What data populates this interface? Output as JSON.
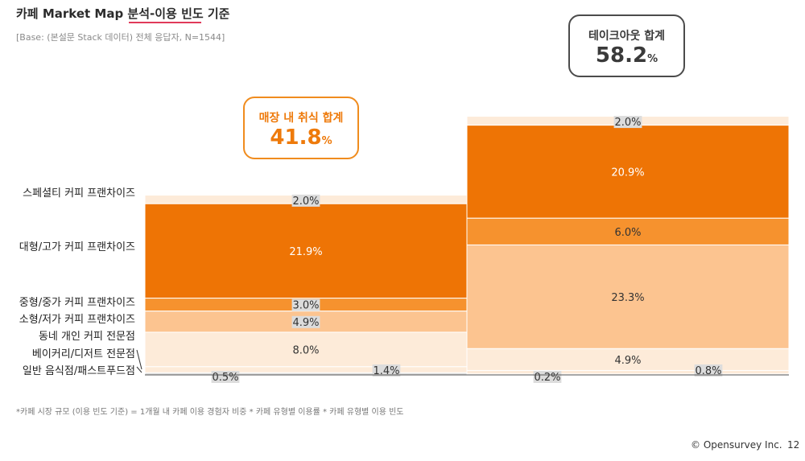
{
  "header": {
    "title": "카페 Market Map 분석-이용 빈도 기준",
    "base": "[Base: (본설문 Stack 데이터) 전체 응답자, N=1544]"
  },
  "callouts": {
    "dine_in": {
      "label": "매장 내 취식 합계",
      "value": "41.8",
      "unit": "%"
    },
    "takeout": {
      "label": "테이크아웃 합계",
      "value": "58.2",
      "unit": "%"
    }
  },
  "colors": {
    "seg0": "#fdebd9",
    "seg1": "#ee7405",
    "seg2": "#f6922e",
    "seg3": "#fcc490",
    "seg4": "#fdebd9",
    "seg5": "#fdebd9",
    "seg6": "#dcdcdc",
    "label_bg": "#dcdcdc",
    "accent": "#e03a5a"
  },
  "chart_data": {
    "type": "mekko",
    "title": "카페 Market Map 분석-이용 빈도 기준",
    "categories": [
      "스페셜티 커피 프랜차이즈",
      "대형/고가 커피 프랜차이즈",
      "중형/중가 커피 프랜차이즈",
      "소형/저가 커피 프랜차이즈",
      "동네 개인 커피 전문점",
      "베이커리/디저트 전문점",
      "일반 음식점/패스트푸드점"
    ],
    "columns": [
      {
        "name": "매장 내 취식",
        "total": 41.8,
        "values": [
          2.0,
          21.9,
          3.0,
          4.9,
          8.0,
          1.4,
          0.5
        ],
        "labels": [
          "2.0%",
          "21.9%",
          "3.0%",
          "4.9%",
          "8.0%",
          "1.4%",
          "0.5%"
        ]
      },
      {
        "name": "테이크아웃",
        "total": 58.2,
        "values": [
          2.0,
          20.9,
          6.0,
          23.3,
          4.9,
          0.8,
          0.2
        ],
        "labels": [
          "2.0%",
          "20.9%",
          "6.0%",
          "23.3%",
          "4.9%",
          "0.8%",
          "0.2%"
        ]
      }
    ]
  },
  "footer": {
    "note": "*카페 시장 규모 (이용 빈도 기준) = 1개월 내 카페 이용 경험자 비중 * 카페 유형별 이용률 * 카페 유형별 이용 빈도",
    "brand": "© Opensurvey Inc.",
    "page": "12"
  }
}
